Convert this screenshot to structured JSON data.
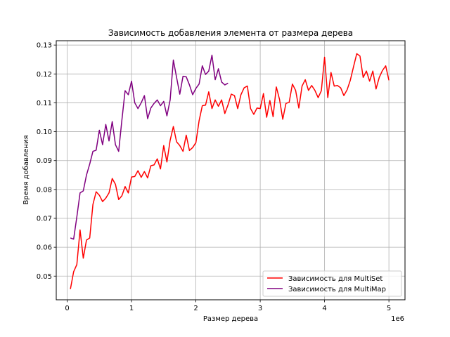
{
  "chart_data": {
    "type": "line",
    "title": "Зависимость добавления элемента от размера дерева",
    "xlabel": "Размер дерева",
    "ylabel": "Время добавления",
    "x_offset_text": "1e6",
    "xlim": [
      -0.17,
      5.25
    ],
    "ylim": [
      0.0418,
      0.1315
    ],
    "x_ticks": [
      0,
      1,
      2,
      3,
      4,
      5
    ],
    "y_ticks": [
      0.05,
      0.06,
      0.07,
      0.08,
      0.09,
      0.1,
      0.11,
      0.12,
      0.13
    ],
    "y_tick_labels": [
      "0.05",
      "0.06",
      "0.07",
      "0.08",
      "0.09",
      "0.10",
      "0.11",
      "0.12",
      "0.13"
    ],
    "grid": true,
    "legend_position": "lower-right",
    "series": [
      {
        "name": "Зависимость для MultiSet",
        "color": "#ff0000",
        "x": [
          0.05,
          0.1,
          0.15,
          0.2,
          0.25,
          0.3,
          0.35,
          0.4,
          0.45,
          0.5,
          0.55,
          0.6,
          0.65,
          0.7,
          0.75,
          0.8,
          0.85,
          0.9,
          0.95,
          1.0,
          1.05,
          1.1,
          1.15,
          1.2,
          1.25,
          1.3,
          1.35,
          1.4,
          1.45,
          1.5,
          1.55,
          1.6,
          1.65,
          1.7,
          1.75,
          1.8,
          1.85,
          1.9,
          1.95,
          2.0,
          2.05,
          2.1,
          2.15,
          2.2,
          2.25,
          2.3,
          2.35,
          2.4,
          2.45,
          2.5,
          2.55,
          2.6,
          2.65,
          2.7,
          2.75,
          2.8,
          2.85,
          2.9,
          2.95,
          3.0,
          3.05,
          3.1,
          3.15,
          3.2,
          3.25,
          3.3,
          3.35,
          3.4,
          3.45,
          3.5,
          3.55,
          3.6,
          3.65,
          3.7,
          3.75,
          3.8,
          3.85,
          3.9,
          3.95,
          4.0,
          4.05,
          4.1,
          4.15,
          4.2,
          4.25,
          4.3,
          4.35,
          4.4,
          4.45,
          4.5,
          4.55,
          4.6,
          4.65,
          4.7,
          4.75,
          4.8,
          4.85,
          4.9,
          4.95,
          5.0
        ],
        "y": [
          0.0455,
          0.0515,
          0.054,
          0.066,
          0.0562,
          0.0625,
          0.0632,
          0.0748,
          0.0792,
          0.078,
          0.0758,
          0.077,
          0.0788,
          0.0838,
          0.0818,
          0.0765,
          0.0778,
          0.081,
          0.0788,
          0.0843,
          0.0845,
          0.0865,
          0.0842,
          0.0862,
          0.084,
          0.0882,
          0.0885,
          0.0906,
          0.0871,
          0.0952,
          0.0895,
          0.097,
          0.1018,
          0.0965,
          0.0952,
          0.0932,
          0.0988,
          0.0935,
          0.0945,
          0.0962,
          0.1038,
          0.109,
          0.1092,
          0.1138,
          0.108,
          0.111,
          0.1088,
          0.111,
          0.1063,
          0.1093,
          0.113,
          0.1125,
          0.108,
          0.1128,
          0.1152,
          0.1158,
          0.108,
          0.106,
          0.1082,
          0.108,
          0.1132,
          0.105,
          0.1108,
          0.1052,
          0.1155,
          0.1112,
          0.1043,
          0.1098,
          0.1102,
          0.1165,
          0.1143,
          0.1082,
          0.1158,
          0.118,
          0.1143,
          0.116,
          0.1143,
          0.1118,
          0.1142,
          0.1258,
          0.1118,
          0.1205,
          0.1158,
          0.116,
          0.1152,
          0.1125,
          0.1145,
          0.1178,
          0.1225,
          0.127,
          0.1262,
          0.1188,
          0.121,
          0.1175,
          0.121,
          0.1148,
          0.1188,
          0.1212,
          0.1228,
          0.1178
        ]
      },
      {
        "name": "Зависимость для MultiMap",
        "color": "#800080",
        "x": [
          0.05,
          0.1,
          0.15,
          0.2,
          0.25,
          0.3,
          0.35,
          0.4,
          0.45,
          0.5,
          0.55,
          0.6,
          0.65,
          0.7,
          0.75,
          0.8,
          0.85,
          0.9,
          0.95,
          1.0,
          1.05,
          1.1,
          1.15,
          1.2,
          1.25,
          1.3,
          1.35,
          1.4,
          1.45,
          1.5,
          1.55,
          1.6,
          1.65,
          1.7,
          1.75,
          1.8,
          1.85,
          1.9,
          1.95,
          2.0,
          2.05,
          2.1,
          2.15,
          2.2,
          2.25,
          2.3,
          2.35,
          2.4,
          2.45,
          2.5
        ],
        "y": [
          0.0632,
          0.0628,
          0.0705,
          0.0788,
          0.0795,
          0.085,
          0.0888,
          0.0932,
          0.0936,
          0.1005,
          0.0955,
          0.1025,
          0.0968,
          0.1035,
          0.0955,
          0.0932,
          0.104,
          0.1142,
          0.1128,
          0.1175,
          0.11,
          0.108,
          0.11,
          0.1125,
          0.1045,
          0.1082,
          0.1098,
          0.111,
          0.109,
          0.1105,
          0.1055,
          0.111,
          0.1248,
          0.1188,
          0.113,
          0.1192,
          0.119,
          0.1162,
          0.1128,
          0.115,
          0.1165,
          0.1228,
          0.1198,
          0.121,
          0.1265,
          0.118,
          0.1218,
          0.1172,
          0.1162,
          0.1168
        ]
      }
    ]
  }
}
